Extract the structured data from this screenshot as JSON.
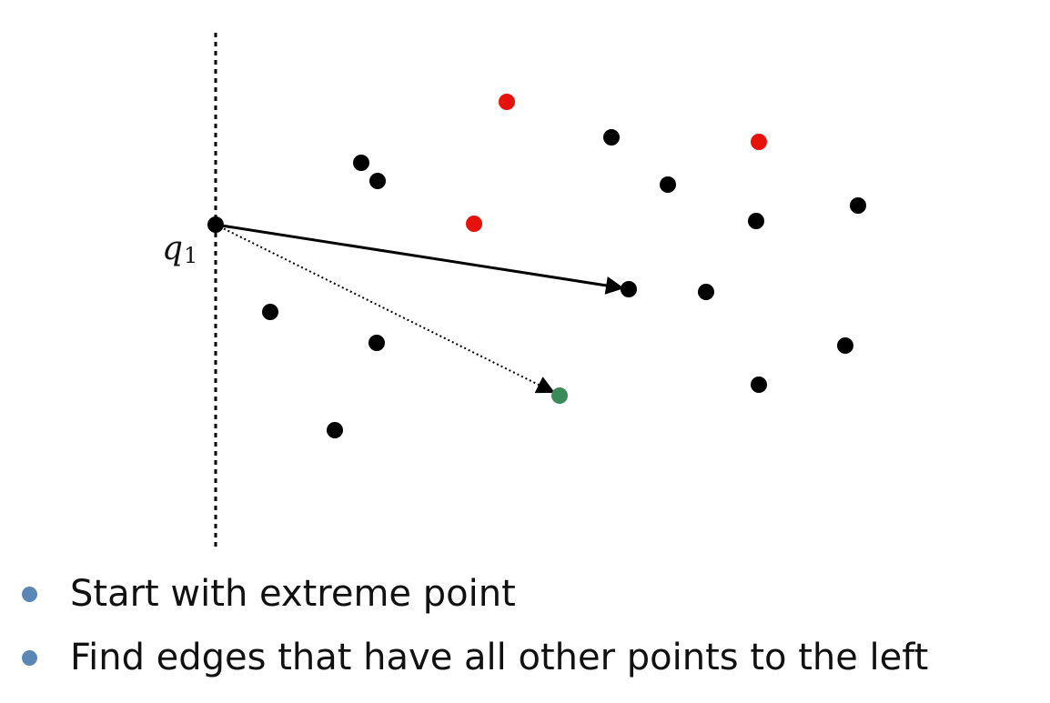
{
  "diagram": {
    "start_label": "q",
    "start_label_subscript": "1",
    "colors": {
      "point": "#000000",
      "highlight_red": "#e8120c",
      "highlight_green": "#3a8a5a",
      "edge": "#000000"
    }
  },
  "bullets": [
    "Start with extreme point",
    "Find edges that have all other points to the left"
  ]
}
